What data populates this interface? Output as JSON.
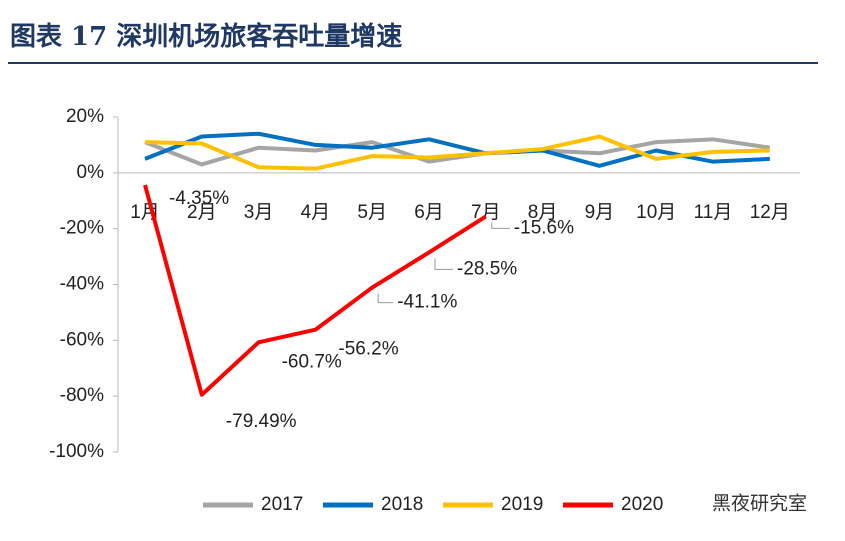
{
  "chart_data": {
    "type": "line",
    "title": "图表 17  深圳机场旅客吞吐量增速",
    "categories": [
      "1月",
      "2月",
      "3月",
      "4月",
      "5月",
      "6月",
      "7月",
      "8月",
      "9月",
      "10月",
      "11月",
      "12月"
    ],
    "series": [
      {
        "name": "2017",
        "color": "#a5a5a5",
        "values": [
          11,
          3,
          9,
          8,
          11,
          4,
          7,
          8,
          7,
          11,
          12,
          9
        ]
      },
      {
        "name": "2018",
        "color": "#0070c0",
        "values": [
          5,
          13,
          14,
          10,
          9,
          12,
          7,
          8,
          2.5,
          8,
          4,
          5
        ]
      },
      {
        "name": "2019",
        "color": "#ffc000",
        "values": [
          11,
          10.5,
          2,
          1.5,
          6,
          5.5,
          7,
          8.5,
          13,
          5,
          7.5,
          8
        ]
      },
      {
        "name": "2020",
        "color": "#ff0000",
        "values": [
          -4.35,
          -79.49,
          -60.7,
          -56.2,
          -41.1,
          -28.5,
          -15.6,
          null,
          null,
          null,
          null,
          null
        ],
        "value_labels": [
          "-4.35%",
          "-79.49%",
          "-60.7%",
          "-56.2%",
          "-41.1%",
          "-28.5%",
          "-15.6%",
          null,
          null,
          null,
          null,
          null
        ]
      }
    ],
    "ylim": [
      -100,
      20
    ],
    "yticks": [
      {
        "value": -100,
        "label": "-100%"
      },
      {
        "value": -80,
        "label": "-80%"
      },
      {
        "value": -60,
        "label": "-60%"
      },
      {
        "value": -40,
        "label": "-40%"
      },
      {
        "value": -20,
        "label": "-20%"
      },
      {
        "value": 0,
        "label": "0%"
      },
      {
        "value": 20,
        "label": "20%"
      }
    ],
    "watermark": "黑夜研究室"
  }
}
